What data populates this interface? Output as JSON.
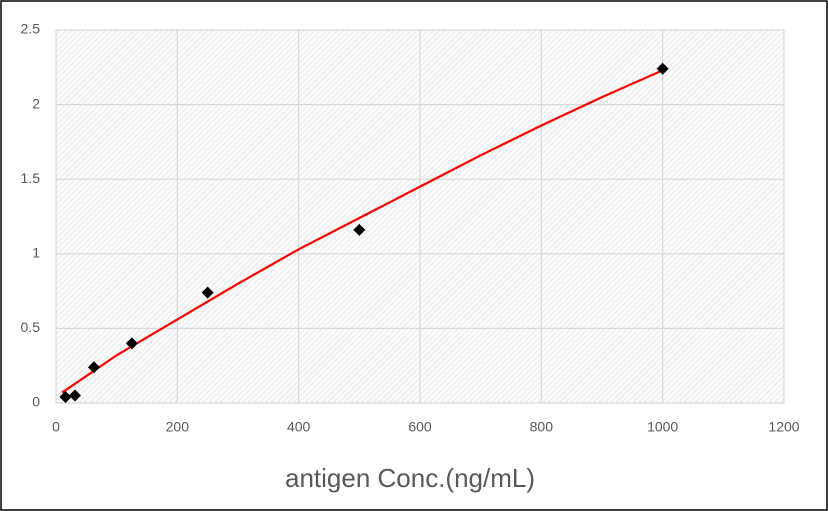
{
  "chart_data": {
    "type": "scatter",
    "x_label": "antigen Conc.(ng/mL)",
    "xlim": [
      0,
      1200
    ],
    "xticks": [
      0,
      200,
      400,
      600,
      800,
      1000,
      1200
    ],
    "ylim": [
      0,
      2.5
    ],
    "yticks": [
      0,
      0.5,
      1,
      1.5,
      2,
      2.5
    ],
    "grid": true,
    "series": [
      {
        "color": "#000000",
        "x": [
          15.6,
          31.25,
          62.5,
          125,
          250,
          500,
          1000
        ],
        "values": [
          0.04,
          0.05,
          0.24,
          0.4,
          0.74,
          1.16,
          2.24
        ]
      }
    ],
    "trendline": {
      "color": "#ff0000",
      "x": [
        10,
        100,
        200,
        300,
        400,
        500,
        600,
        700,
        800,
        900,
        1000
      ],
      "values": [
        0.07,
        0.32,
        0.56,
        0.8,
        1.03,
        1.24,
        1.45,
        1.66,
        1.86,
        2.05,
        2.23
      ]
    }
  }
}
